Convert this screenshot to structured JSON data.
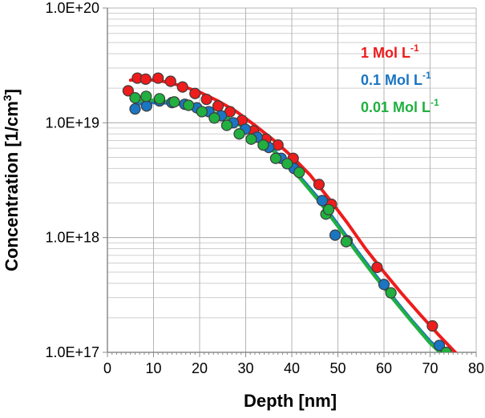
{
  "chart_data": {
    "type": "scatter",
    "title": "",
    "xlabel": "Depth [nm]",
    "ylabel_main": "Concentration [1/cm",
    "ylabel_sup": "3",
    "ylabel_end": "]",
    "xlim": [
      0,
      80
    ],
    "ylim": [
      1e+17,
      1e+20
    ],
    "yscale": "log",
    "x_ticks": [
      0,
      10,
      20,
      30,
      40,
      50,
      60,
      70,
      80
    ],
    "x_tick_labels": [
      "0",
      "10",
      "20",
      "30",
      "40",
      "50",
      "60",
      "70",
      "80"
    ],
    "y_ticks": [
      1e+17,
      1e+18,
      1e+19,
      1e+20
    ],
    "y_tick_labels": [
      "1.0E+17",
      "1.0E+18",
      "1.0E+19",
      "1.0E+20"
    ],
    "grid": true,
    "legend_position": "top-right",
    "series": [
      {
        "name": "1 Mol L-1",
        "label_main": "1 Mol L",
        "label_sup": "-1",
        "color": "#ee1c1c",
        "x": [
          4.5,
          6.5,
          8.3,
          11,
          13.7,
          16.3,
          19,
          21.5,
          24,
          26.6,
          29.2,
          31.7,
          34.4,
          37,
          40.3,
          45.9,
          48.6,
          58.5,
          70.5
        ],
        "y": [
          1.9e+19,
          2.45e+19,
          2.4e+19,
          2.45e+19,
          2.3e+19,
          2.05e+19,
          1.8e+19,
          1.6e+19,
          1.4e+19,
          1.25e+19,
          1.05e+19,
          8.5e+18,
          7.2e+18,
          6.4e+18,
          4.9e+18,
          2.9e+18,
          1.95e+18,
          5.5e+17,
          1.7e+17
        ],
        "fit_x": [
          5,
          8,
          12,
          16,
          20,
          24,
          28,
          32,
          36,
          40,
          44,
          48,
          52,
          56,
          60,
          64,
          68,
          72,
          76
        ],
        "fit_y": [
          2.35e+19,
          2.4e+19,
          2.3e+19,
          2.1e+19,
          1.85e+19,
          1.55e+19,
          1.25e+19,
          9.5e+18,
          7.1e+18,
          5.1e+18,
          3.5e+18,
          2.2e+18,
          1.35e+18,
          8e+17,
          5e+17,
          3.2e+17,
          2.1e+17,
          1.4e+17,
          9.5e+16
        ]
      },
      {
        "name": "0.1 Mol L-1",
        "label_main": "0.1 Mol L",
        "label_sup": "-1",
        "color": "#1a75c2",
        "x": [
          6,
          8.5,
          11.3,
          14,
          16.8,
          19.4,
          22,
          24.7,
          27.3,
          29.9,
          32.5,
          35,
          37.7,
          40.5,
          46.6,
          49.4,
          52,
          60,
          72
        ],
        "y": [
          1.32e+19,
          1.4e+19,
          1.55e+19,
          1.5e+19,
          1.45e+19,
          1.35e+19,
          1.25e+19,
          1.15e+19,
          1e+19,
          8.8e+18,
          7.5e+18,
          6.1e+18,
          4.9e+18,
          4e+18,
          2.1e+18,
          1.05e+18,
          9.4e+17,
          3.9e+17,
          1.15e+17
        ],
        "fit_x": [
          6,
          10,
          14,
          18,
          22,
          26,
          30,
          34,
          38,
          42,
          46,
          50,
          54,
          58,
          62,
          66,
          70,
          74
        ],
        "fit_y": [
          1.45e+19,
          1.5e+19,
          1.48e+19,
          1.4e+19,
          1.27e+19,
          1.1e+19,
          9e+18,
          6.8e+18,
          4.9e+18,
          3.3e+18,
          2.15e+18,
          1.3e+18,
          7.8e+17,
          4.8e+17,
          3e+17,
          1.9e+17,
          1.25e+17,
          9e+16
        ]
      },
      {
        "name": "0.01 Mol L-1",
        "label_main": "0.01 Mol L",
        "label_sup": "-1",
        "color": "#21b040",
        "x": [
          6,
          8.4,
          11.3,
          14.5,
          17.6,
          20.5,
          23.2,
          25.9,
          28.6,
          31.2,
          33.8,
          36.5,
          39,
          41.6,
          47.4,
          48,
          51.8,
          61.5,
          73.5
        ],
        "y": [
          1.65e+19,
          1.7e+19,
          1.62e+19,
          1.52e+19,
          1.42e+19,
          1.25e+19,
          1.1e+19,
          9.5e+18,
          8e+18,
          7.2e+18,
          6.4e+18,
          4.9e+18,
          4.4e+18,
          3.7e+18,
          1.6e+18,
          1.75e+18,
          9.2e+17,
          3.3e+17,
          1e+17
        ],
        "fit_x": [
          6,
          10,
          14,
          18,
          22,
          26,
          30,
          34,
          38,
          42,
          46,
          50,
          54,
          58,
          62,
          66,
          70,
          74
        ],
        "fit_y": [
          1.55e+19,
          1.58e+19,
          1.52e+19,
          1.42e+19,
          1.27e+19,
          1.1e+19,
          8.9e+18,
          6.7e+18,
          4.8e+18,
          3.2e+18,
          2.05e+18,
          1.25e+18,
          7.5e+17,
          4.6e+17,
          2.9e+17,
          1.85e+17,
          1.2e+17,
          8.5e+16
        ]
      }
    ]
  }
}
